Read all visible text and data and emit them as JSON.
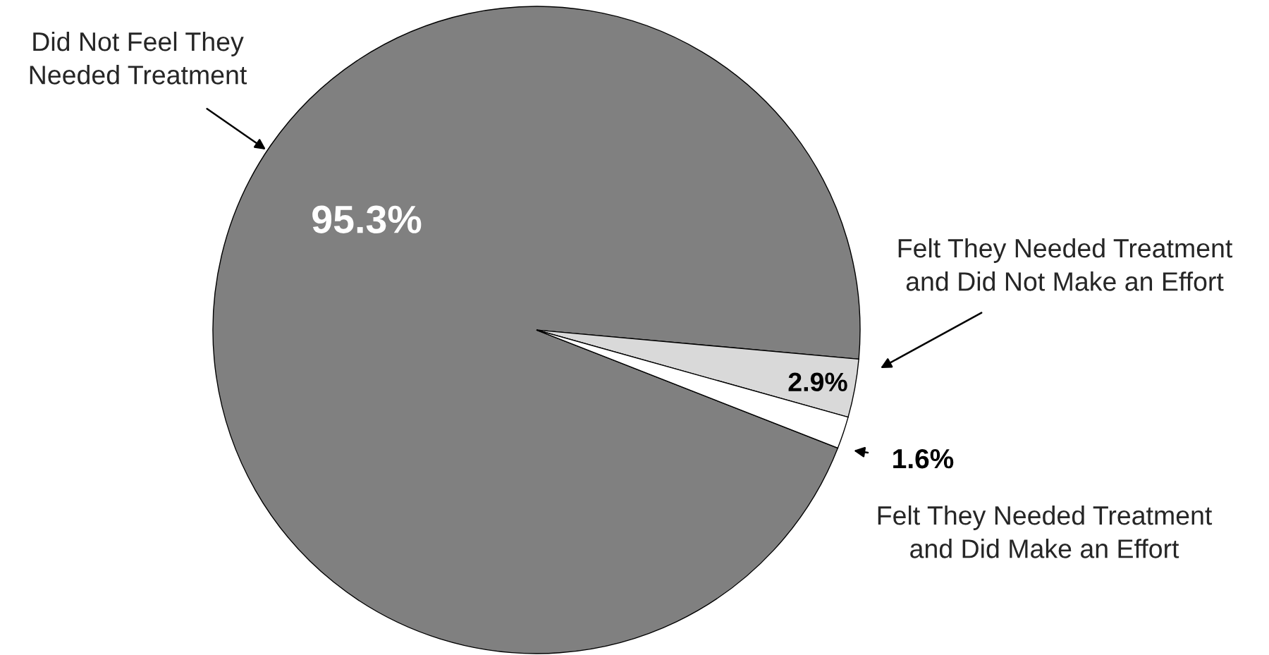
{
  "chart_data": {
    "type": "pie",
    "categories": [
      "Did Not Feel They\nNeeded Treatment",
      "Felt They Needed Treatment\nand Did Not Make an Effort",
      "Felt They Needed Treatment\nand Did Make an Effort"
    ],
    "values": [
      95.3,
      2.9,
      1.6
    ],
    "colors": [
      "#808080",
      "#d9d9d9",
      "#ffffff"
    ],
    "value_labels": [
      "95.3%",
      "2.9%",
      "1.6%"
    ]
  }
}
